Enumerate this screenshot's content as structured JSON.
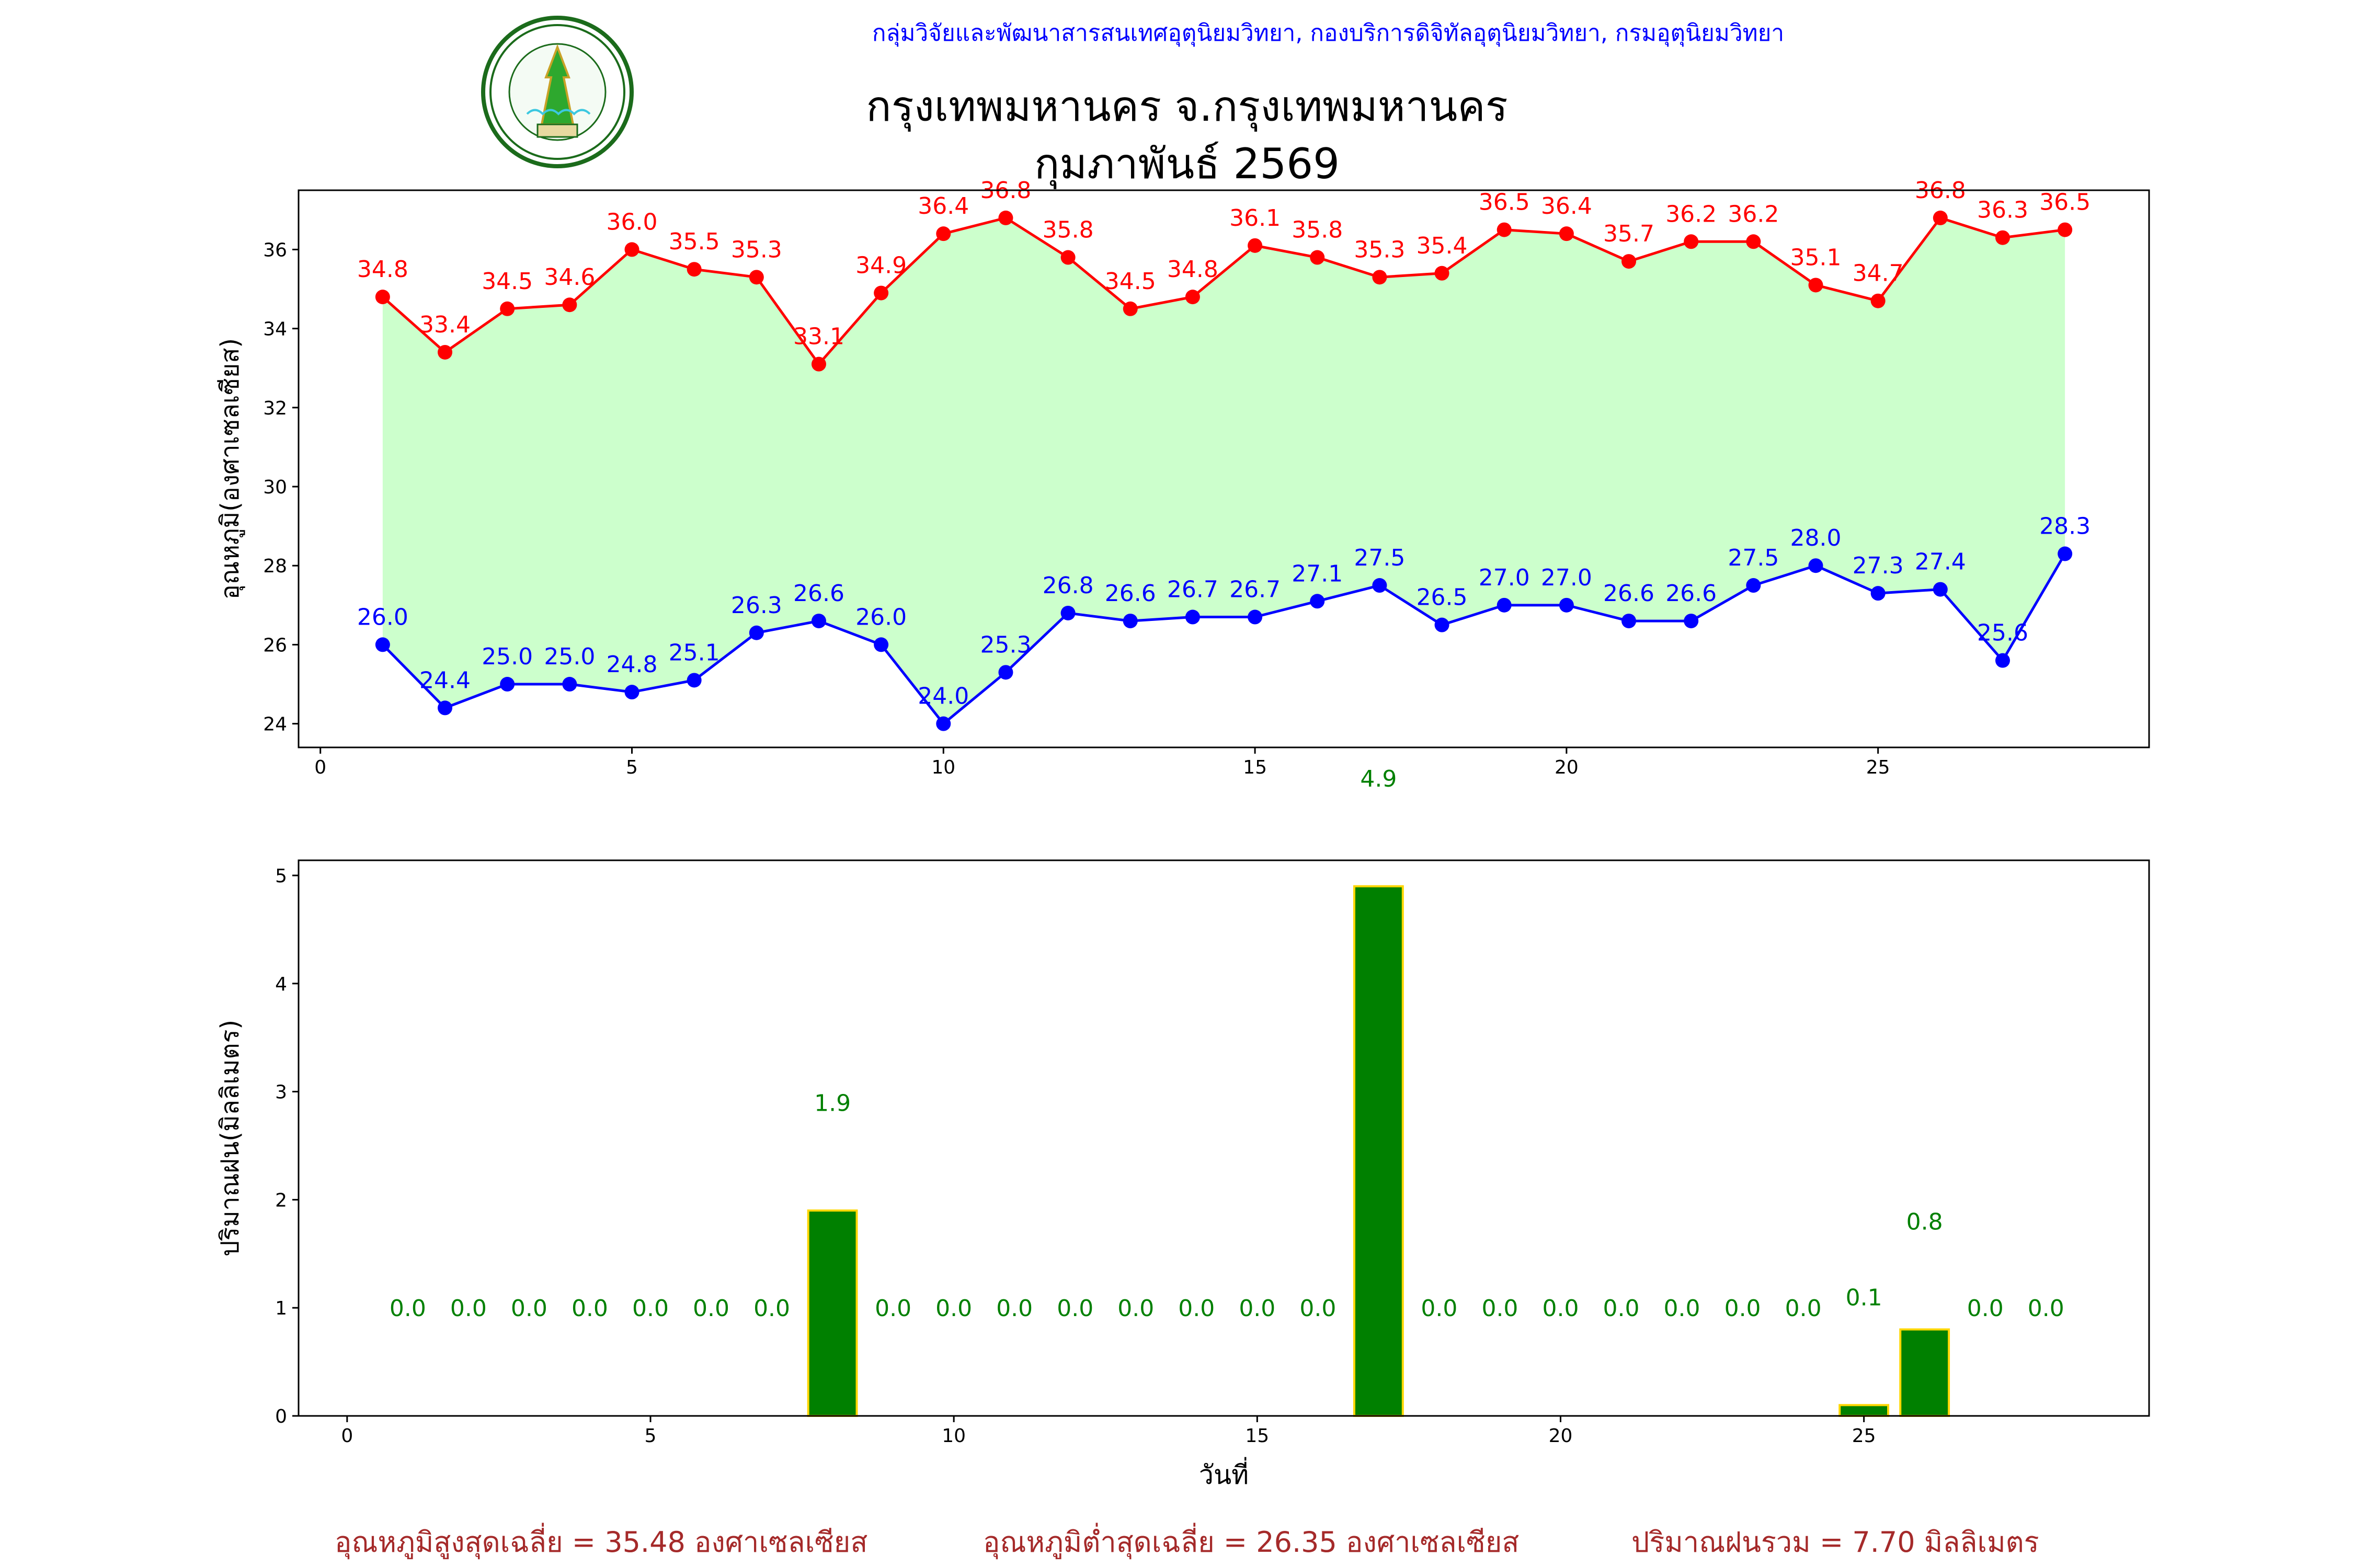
{
  "header": {
    "organization": "กลุ่มวิจัยและพัฒนาสารสนเทศอุตุนิยมวิทยา, กองบริการดิจิทัลอุตุนิยมวิทยา, กรมอุตุนิยมวิทยา",
    "title": "กรุงเทพมหานคร จ.กรุงเทพมหานคร",
    "subtitle": "กุมภาพันธ์ 2569",
    "logo_text": "METEOROLOGICAL DEPARTMENT กรมอุตุนิยมวิทยา"
  },
  "chart_data": [
    {
      "type": "line",
      "ylabel": "อุณหภูมิ(องศาเซลเซียส)",
      "xlabel": "",
      "xlim": [
        -0.35,
        29.35
      ],
      "ylim": [
        23.4,
        37.5
      ],
      "xticks": [
        0,
        5,
        10,
        15,
        20,
        25
      ],
      "yticks": [
        24,
        26,
        28,
        30,
        32,
        34,
        36
      ],
      "grid": false,
      "fill_between_color": "#ccffcc",
      "x": [
        1,
        2,
        3,
        4,
        5,
        6,
        7,
        8,
        9,
        10,
        11,
        12,
        13,
        14,
        15,
        16,
        17,
        18,
        19,
        20,
        21,
        22,
        23,
        24,
        25,
        26,
        27,
        28
      ],
      "series": [
        {
          "color": "#ff0000",
          "values": [
            34.8,
            33.4,
            34.5,
            34.6,
            36.0,
            35.5,
            35.3,
            33.1,
            34.9,
            36.4,
            36.8,
            35.8,
            34.5,
            34.8,
            36.1,
            35.8,
            35.3,
            35.4,
            36.5,
            36.4,
            35.7,
            36.2,
            36.2,
            35.1,
            34.7,
            36.8,
            36.3,
            36.5
          ]
        },
        {
          "color": "#0000ff",
          "values": [
            26.0,
            24.4,
            25.0,
            25.0,
            24.8,
            25.1,
            26.3,
            26.6,
            26.0,
            24.0,
            25.3,
            26.8,
            26.6,
            26.7,
            26.7,
            27.1,
            27.5,
            26.5,
            27.0,
            27.0,
            26.6,
            26.6,
            27.5,
            28.0,
            27.3,
            27.4,
            25.6,
            28.3
          ]
        }
      ]
    },
    {
      "type": "bar",
      "ylabel": "ปริมาณฝน(มิลลิเมตร)",
      "xlabel": "วันที่",
      "xlim": [
        -0.8,
        29.7
      ],
      "ylim": [
        0,
        5.14
      ],
      "xticks": [
        0,
        5,
        10,
        15,
        20,
        25
      ],
      "yticks": [
        0,
        1,
        2,
        3,
        4,
        5
      ],
      "grid": false,
      "bar_color": "#008000",
      "edge_color": "#ffd700",
      "label_color": "#008000",
      "categories": [
        1,
        2,
        3,
        4,
        5,
        6,
        7,
        8,
        9,
        10,
        11,
        12,
        13,
        14,
        15,
        16,
        17,
        18,
        19,
        20,
        21,
        22,
        23,
        24,
        25,
        26,
        27,
        28
      ],
      "values": [
        0.0,
        0.0,
        0.0,
        0.0,
        0.0,
        0.0,
        0.0,
        1.9,
        0.0,
        0.0,
        0.0,
        0.0,
        0.0,
        0.0,
        0.0,
        0.0,
        4.9,
        0.0,
        0.0,
        0.0,
        0.0,
        0.0,
        0.0,
        0.0,
        0.1,
        0.8,
        0.0,
        0.0
      ]
    }
  ],
  "footer": {
    "avg_max": "อุณหภูมิสูงสุดเฉลี่ย = 35.48 องศาเซลเซียส",
    "avg_min": "อุณหภูมิต่ำสุดเฉลี่ย = 26.35 องศาเซลเซียส",
    "total_rain": "ปริมาณฝนรวม = 7.70 มิลลิเมตร"
  }
}
